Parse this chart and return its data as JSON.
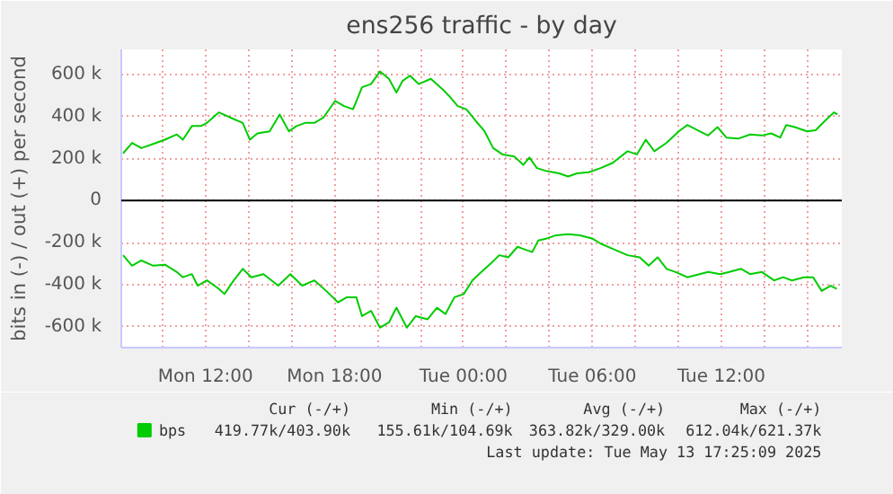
{
  "chart_data": {
    "type": "line",
    "title": "ens256 traffic - by day",
    "ylabel": "bits in (-) / out (+) per second",
    "xlim": [
      "2025-05-12T08:05",
      "2025-05-13T17:36"
    ],
    "ylim": [
      -700000,
      720000
    ],
    "xticks": [
      {
        "value": "2025-05-12T10:00",
        "label": null
      },
      {
        "value": "2025-05-12T12:00",
        "label": "Mon 12:00"
      },
      {
        "value": "2025-05-12T14:00",
        "label": null
      },
      {
        "value": "2025-05-12T16:00",
        "label": null
      },
      {
        "value": "2025-05-12T18:00",
        "label": "Mon 18:00"
      },
      {
        "value": "2025-05-12T20:00",
        "label": null
      },
      {
        "value": "2025-05-12T22:00",
        "label": null
      },
      {
        "value": "2025-05-13T00:00",
        "label": "Tue 00:00"
      },
      {
        "value": "2025-05-13T02:00",
        "label": null
      },
      {
        "value": "2025-05-13T04:00",
        "label": null
      },
      {
        "value": "2025-05-13T06:00",
        "label": "Tue 06:00"
      },
      {
        "value": "2025-05-13T08:00",
        "label": null
      },
      {
        "value": "2025-05-13T10:00",
        "label": null
      },
      {
        "value": "2025-05-13T12:00",
        "label": "Tue 12:00"
      },
      {
        "value": "2025-05-13T14:00",
        "label": null
      },
      {
        "value": "2025-05-13T16:00",
        "label": null
      }
    ],
    "yticks": [
      {
        "value": -600000,
        "label": "-600 k"
      },
      {
        "value": -400000,
        "label": "-400 k"
      },
      {
        "value": -200000,
        "label": "-200 k"
      },
      0,
      {
        "value": 200000,
        "label": "200 k"
      },
      {
        "value": 400000,
        "label": "400 k"
      },
      {
        "value": 600000,
        "label": "600 k"
      }
    ],
    "grid": true,
    "legend": "bottom left",
    "marker": "none",
    "line_style": "solid",
    "ref_lines": [
      {
        "axis": "y",
        "value": 0,
        "color": "#000000"
      }
    ],
    "annotations": [
      "Cur (-/+)",
      "Min (-/+)",
      "Avg (-/+)",
      "Max (-/+)",
      "419.77k/403.90k",
      "155.61k/104.69k",
      "363.82k/329.00k",
      "612.04k/621.37k",
      "Last update: Tue May 13 17:25:09 2025"
    ],
    "series": [
      {
        "name": "bps",
        "color": "#00cc00",
        "x": [
          "2025-05-12T08:10",
          "2025-05-12T08:35",
          "2025-05-12T09:01",
          "2025-05-12T09:34",
          "2025-05-12T10:07",
          "2025-05-12T10:40",
          "2025-05-12T10:57",
          "2025-05-12T11:22",
          "2025-05-12T11:47",
          "2025-05-12T12:04",
          "2025-05-12T12:37",
          "2025-05-12T13:10",
          "2025-05-12T13:44",
          "2025-05-12T14:04",
          "2025-05-12T14:25",
          "2025-05-12T14:59",
          "2025-05-12T15:27",
          "2025-05-12T15:53",
          "2025-05-12T16:14",
          "2025-05-12T16:38",
          "2025-05-12T17:04",
          "2025-05-12T17:29",
          "2025-05-12T18:02",
          "2025-05-12T18:27",
          "2025-05-12T18:52",
          "2025-05-12T19:17",
          "2025-05-12T19:42",
          "2025-05-12T20:07",
          "2025-05-12T20:32",
          "2025-05-12T20:53",
          "2025-05-12T21:10",
          "2025-05-12T21:31",
          "2025-05-12T21:55",
          "2025-05-12T22:29",
          "2025-05-12T23:02",
          "2025-05-12T23:19",
          "2025-05-12T23:44",
          "2025-05-13T00:08",
          "2025-05-13T00:34",
          "2025-05-13T00:59",
          "2025-05-13T01:23",
          "2025-05-13T01:49",
          "2025-05-13T02:22",
          "2025-05-13T02:47",
          "2025-05-13T03:04",
          "2025-05-13T03:25",
          "2025-05-13T03:53",
          "2025-05-13T04:27",
          "2025-05-13T04:52",
          "2025-05-13T05:17",
          "2025-05-13T05:50",
          "2025-05-13T06:23",
          "2025-05-13T06:57",
          "2025-05-13T07:38",
          "2025-05-13T08:04",
          "2025-05-13T08:29",
          "2025-05-13T08:53",
          "2025-05-13T09:27",
          "2025-05-13T10:01",
          "2025-05-13T10:25",
          "2025-05-13T10:59",
          "2025-05-13T11:23",
          "2025-05-13T11:49",
          "2025-05-13T12:14",
          "2025-05-13T12:47",
          "2025-05-13T13:20",
          "2025-05-13T13:53",
          "2025-05-13T14:19",
          "2025-05-13T14:44",
          "2025-05-13T15:01",
          "2025-05-13T15:25",
          "2025-05-13T15:59",
          "2025-05-13T16:23",
          "2025-05-13T16:49",
          "2025-05-13T17:14",
          "2025-05-13T17:24"
        ],
        "values": [
          225000,
          275000,
          250000,
          270000,
          290000,
          315000,
          290000,
          355000,
          355000,
          370000,
          420000,
          395000,
          370000,
          290000,
          320000,
          330000,
          410000,
          330000,
          355000,
          370000,
          370000,
          395000,
          475000,
          450000,
          435000,
          540000,
          555000,
          615000,
          580000,
          515000,
          570000,
          595000,
          555000,
          580000,
          530000,
          500000,
          450000,
          435000,
          380000,
          330000,
          250000,
          220000,
          210000,
          170000,
          205000,
          155000,
          140000,
          130000,
          115000,
          130000,
          135000,
          155000,
          180000,
          235000,
          220000,
          290000,
          235000,
          275000,
          330000,
          360000,
          330000,
          310000,
          350000,
          300000,
          295000,
          315000,
          310000,
          320000,
          300000,
          360000,
          350000,
          330000,
          335000,
          380000,
          420000,
          410000
        ]
      },
      {
        "color": "#00cc00",
        "x": [
          "2025-05-12T08:10",
          "2025-05-12T08:35",
          "2025-05-12T09:01",
          "2025-05-12T09:34",
          "2025-05-12T10:07",
          "2025-05-12T10:40",
          "2025-05-12T10:57",
          "2025-05-12T11:22",
          "2025-05-12T11:38",
          "2025-05-12T12:04",
          "2025-05-12T12:37",
          "2025-05-12T12:53",
          "2025-05-12T13:19",
          "2025-05-12T13:44",
          "2025-05-12T14:08",
          "2025-05-12T14:42",
          "2025-05-12T15:23",
          "2025-05-12T15:57",
          "2025-05-12T16:30",
          "2025-05-12T17:04",
          "2025-05-12T17:37",
          "2025-05-12T18:10",
          "2025-05-12T18:35",
          "2025-05-12T19:01",
          "2025-05-12T19:17",
          "2025-05-12T19:42",
          "2025-05-12T20:07",
          "2025-05-12T20:32",
          "2025-05-12T20:53",
          "2025-05-12T21:22",
          "2025-05-12T21:47",
          "2025-05-12T22:20",
          "2025-05-12T22:46",
          "2025-05-12T23:10",
          "2025-05-12T23:35",
          "2025-05-13T00:01",
          "2025-05-13T00:25",
          "2025-05-13T00:50",
          "2025-05-13T01:16",
          "2025-05-13T01:40",
          "2025-05-13T02:05",
          "2025-05-13T02:31",
          "2025-05-13T02:47",
          "2025-05-13T03:12",
          "2025-05-13T03:29",
          "2025-05-13T03:53",
          "2025-05-13T04:19",
          "2025-05-13T04:52",
          "2025-05-13T05:25",
          "2025-05-13T05:59",
          "2025-05-13T06:23",
          "2025-05-13T06:57",
          "2025-05-13T07:38",
          "2025-05-13T08:12",
          "2025-05-13T08:37",
          "2025-05-13T09:02",
          "2025-05-13T09:27",
          "2025-05-13T09:52",
          "2025-05-13T10:25",
          "2025-05-13T10:59",
          "2025-05-13T11:23",
          "2025-05-13T11:57",
          "2025-05-13T12:22",
          "2025-05-13T12:55",
          "2025-05-13T13:20",
          "2025-05-13T13:53",
          "2025-05-13T14:27",
          "2025-05-13T14:52",
          "2025-05-13T15:17",
          "2025-05-13T15:50",
          "2025-05-13T16:16",
          "2025-05-13T16:40",
          "2025-05-13T17:05",
          "2025-05-13T17:22"
        ],
        "values": [
          -260000,
          -310000,
          -285000,
          -310000,
          -305000,
          -340000,
          -365000,
          -350000,
          -405000,
          -380000,
          -420000,
          -445000,
          -380000,
          -325000,
          -365000,
          -350000,
          -405000,
          -350000,
          -405000,
          -380000,
          -430000,
          -485000,
          -460000,
          -460000,
          -550000,
          -525000,
          -605000,
          -580000,
          -510000,
          -605000,
          -550000,
          -565000,
          -510000,
          -540000,
          -460000,
          -445000,
          -380000,
          -340000,
          -300000,
          -260000,
          -270000,
          -220000,
          -230000,
          -245000,
          -190000,
          -180000,
          -165000,
          -160000,
          -165000,
          -180000,
          -205000,
          -230000,
          -260000,
          -270000,
          -310000,
          -270000,
          -325000,
          -340000,
          -365000,
          -350000,
          -340000,
          -350000,
          -340000,
          -325000,
          -350000,
          -340000,
          -380000,
          -365000,
          -380000,
          -365000,
          -365000,
          -430000,
          -405000,
          -420000
        ]
      }
    ]
  }
}
